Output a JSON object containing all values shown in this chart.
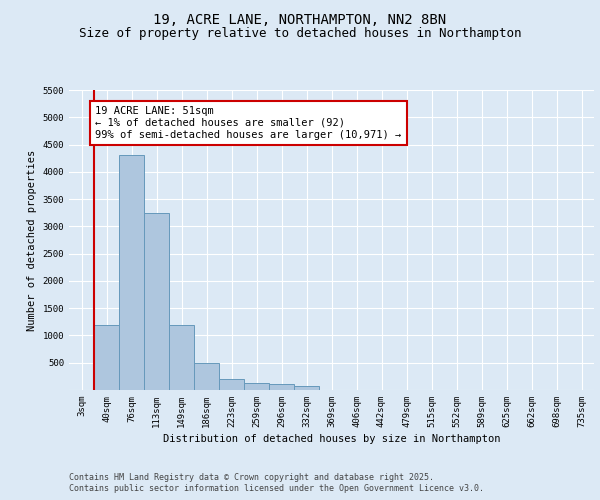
{
  "title_line1": "19, ACRE LANE, NORTHAMPTON, NN2 8BN",
  "title_line2": "Size of property relative to detached houses in Northampton",
  "xlabel": "Distribution of detached houses by size in Northampton",
  "ylabel": "Number of detached properties",
  "categories": [
    "3sqm",
    "40sqm",
    "76sqm",
    "113sqm",
    "149sqm",
    "186sqm",
    "223sqm",
    "259sqm",
    "296sqm",
    "332sqm",
    "369sqm",
    "406sqm",
    "442sqm",
    "479sqm",
    "515sqm",
    "552sqm",
    "589sqm",
    "625sqm",
    "662sqm",
    "698sqm",
    "735sqm"
  ],
  "values": [
    0,
    1200,
    4300,
    3250,
    1200,
    490,
    200,
    130,
    105,
    70,
    0,
    0,
    0,
    0,
    0,
    0,
    0,
    0,
    0,
    0,
    0
  ],
  "bar_color": "#aec6de",
  "bar_edge_color": "#6699bb",
  "vline_color": "#cc0000",
  "annotation_text": "19 ACRE LANE: 51sqm\n← 1% of detached houses are smaller (92)\n99% of semi-detached houses are larger (10,971) →",
  "annotation_box_edge_color": "#cc0000",
  "ylim": [
    0,
    5500
  ],
  "yticks": [
    0,
    500,
    1000,
    1500,
    2000,
    2500,
    3000,
    3500,
    4000,
    4500,
    5000,
    5500
  ],
  "background_color": "#dce9f5",
  "plot_bg_color": "#dce9f5",
  "grid_color": "#ffffff",
  "footer_line1": "Contains HM Land Registry data © Crown copyright and database right 2025.",
  "footer_line2": "Contains public sector information licensed under the Open Government Licence v3.0.",
  "title_fontsize": 10,
  "subtitle_fontsize": 9,
  "axis_label_fontsize": 7.5,
  "tick_fontsize": 6.5,
  "annotation_fontsize": 7.5,
  "footer_fontsize": 6
}
